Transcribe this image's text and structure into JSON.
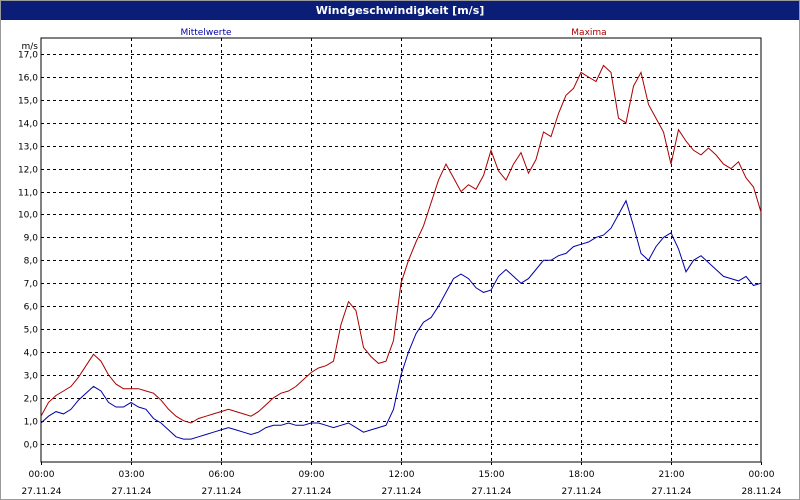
{
  "window": {
    "title": "Windgeschwindigkeit [m/s]"
  },
  "chart_data": {
    "type": "line",
    "title": "Windgeschwindigkeit [m/s]",
    "ylabel": "m/s",
    "xlabel": "",
    "ylim": [
      -0.8,
      17.7
    ],
    "xlim": [
      0,
      24
    ],
    "grid": true,
    "y_ticks": [
      0,
      1,
      2,
      3,
      4,
      5,
      6,
      7,
      8,
      9,
      10,
      11,
      12,
      13,
      14,
      15,
      16,
      17
    ],
    "y_tick_labels": [
      "0,0",
      "1,0",
      "2,0",
      "3,0",
      "4,0",
      "5,0",
      "6,0",
      "7,0",
      "8,0",
      "9,0",
      "10,0",
      "11,0",
      "12,0",
      "13,0",
      "14,0",
      "15,0",
      "16,0",
      "17,0"
    ],
    "x_ticks": [
      {
        "time": "00:00",
        "date": "27.11.24"
      },
      {
        "time": "03:00",
        "date": "27.11.24"
      },
      {
        "time": "06:00",
        "date": "27.11.24"
      },
      {
        "time": "09:00",
        "date": "27.11.24"
      },
      {
        "time": "12:00",
        "date": "27.11.24"
      },
      {
        "time": "15:00",
        "date": "27.11.24"
      },
      {
        "time": "18:00",
        "date": "27.11.24"
      },
      {
        "time": "21:00",
        "date": "27.11.24"
      },
      {
        "time": "00:00",
        "date": "28.11.24"
      }
    ],
    "series": [
      {
        "name": "Mittelwerte",
        "color": "#0000aa",
        "x": [
          0,
          0.25,
          0.5,
          0.75,
          1.0,
          1.25,
          1.5,
          1.75,
          2.0,
          2.25,
          2.5,
          2.75,
          3.0,
          3.25,
          3.5,
          3.75,
          4.0,
          4.25,
          4.5,
          4.75,
          5.0,
          5.25,
          5.5,
          5.75,
          6.0,
          6.25,
          6.5,
          6.75,
          7.0,
          7.25,
          7.5,
          7.75,
          8.0,
          8.25,
          8.5,
          8.75,
          9.0,
          9.25,
          9.5,
          9.75,
          10.0,
          10.25,
          10.5,
          10.75,
          11.0,
          11.25,
          11.5,
          11.75,
          12.0,
          12.25,
          12.5,
          12.75,
          13.0,
          13.25,
          13.5,
          13.75,
          14.0,
          14.25,
          14.5,
          14.75,
          15.0,
          15.25,
          15.5,
          15.75,
          16.0,
          16.25,
          16.5,
          16.75,
          17.0,
          17.25,
          17.5,
          17.75,
          18.0,
          18.25,
          18.5,
          18.75,
          19.0,
          19.25,
          19.5,
          19.75,
          20.0,
          20.25,
          20.5,
          20.75,
          21.0,
          21.25,
          21.5,
          21.75,
          22.0,
          22.25,
          22.5,
          22.75,
          23.0,
          23.25,
          23.5,
          23.75,
          24.0
        ],
        "values": [
          0.9,
          1.2,
          1.4,
          1.3,
          1.5,
          1.9,
          2.2,
          2.5,
          2.3,
          1.8,
          1.6,
          1.6,
          1.8,
          1.6,
          1.5,
          1.1,
          0.9,
          0.6,
          0.3,
          0.2,
          0.2,
          0.3,
          0.4,
          0.5,
          0.6,
          0.7,
          0.6,
          0.5,
          0.4,
          0.5,
          0.7,
          0.8,
          0.8,
          0.9,
          0.8,
          0.8,
          0.9,
          0.9,
          0.8,
          0.7,
          0.8,
          0.9,
          0.7,
          0.5,
          0.6,
          0.7,
          0.8,
          1.5,
          3.0,
          4.0,
          4.8,
          5.3,
          5.5,
          6.0,
          6.6,
          7.2,
          7.4,
          7.2,
          6.8,
          6.6,
          6.7,
          7.3,
          7.6,
          7.3,
          7.0,
          7.2,
          7.6,
          8.0,
          8.0,
          8.2,
          8.3,
          8.6,
          8.7,
          8.8,
          9.0,
          9.1,
          9.4,
          10.0,
          10.6,
          9.5,
          8.3,
          8.0,
          8.6,
          9.0,
          9.2,
          8.5,
          7.5,
          8.0,
          8.2,
          7.9,
          7.6,
          7.3,
          7.2,
          7.1,
          7.3,
          6.9,
          7.0
        ],
        "line_width": 1
      },
      {
        "name": "Maxima",
        "color": "#aa0000",
        "x": [
          0,
          0.25,
          0.5,
          0.75,
          1.0,
          1.25,
          1.5,
          1.75,
          2.0,
          2.25,
          2.5,
          2.75,
          3.0,
          3.25,
          3.5,
          3.75,
          4.0,
          4.25,
          4.5,
          4.75,
          5.0,
          5.25,
          5.5,
          5.75,
          6.0,
          6.25,
          6.5,
          6.75,
          7.0,
          7.25,
          7.5,
          7.75,
          8.0,
          8.25,
          8.5,
          8.75,
          9.0,
          9.25,
          9.5,
          9.75,
          10.0,
          10.25,
          10.5,
          10.75,
          11.0,
          11.25,
          11.5,
          11.75,
          12.0,
          12.25,
          12.5,
          12.75,
          13.0,
          13.25,
          13.5,
          13.75,
          14.0,
          14.25,
          14.5,
          14.75,
          15.0,
          15.25,
          15.5,
          15.75,
          16.0,
          16.25,
          16.5,
          16.75,
          17.0,
          17.25,
          17.5,
          17.75,
          18.0,
          18.25,
          18.5,
          18.75,
          19.0,
          19.25,
          19.5,
          19.75,
          20.0,
          20.25,
          20.5,
          20.75,
          21.0,
          21.25,
          21.5,
          21.75,
          22.0,
          22.25,
          22.5,
          22.75,
          23.0,
          23.25,
          23.5,
          23.75,
          24.0
        ],
        "values": [
          1.2,
          1.8,
          2.1,
          2.3,
          2.5,
          2.9,
          3.4,
          3.9,
          3.6,
          3.0,
          2.6,
          2.4,
          2.4,
          2.4,
          2.3,
          2.2,
          1.9,
          1.5,
          1.2,
          1.0,
          0.9,
          1.1,
          1.2,
          1.3,
          1.4,
          1.5,
          1.4,
          1.3,
          1.2,
          1.4,
          1.7,
          2.0,
          2.2,
          2.3,
          2.5,
          2.8,
          3.1,
          3.3,
          3.4,
          3.6,
          5.2,
          6.2,
          5.8,
          4.2,
          3.8,
          3.5,
          3.6,
          4.5,
          7.0,
          8.0,
          8.8,
          9.5,
          10.5,
          11.5,
          12.2,
          11.6,
          11.0,
          11.3,
          11.1,
          11.7,
          12.8,
          11.9,
          11.5,
          12.2,
          12.7,
          11.8,
          12.4,
          13.6,
          13.4,
          14.4,
          15.2,
          15.5,
          16.2,
          16.0,
          15.8,
          16.5,
          16.2,
          14.2,
          14.0,
          15.6,
          16.2,
          14.8,
          14.2,
          13.6,
          12.2,
          13.7,
          13.2,
          12.8,
          12.6,
          12.9,
          12.6,
          12.2,
          12.0,
          12.3,
          11.6,
          11.2,
          10.1
        ],
        "line_width": 1
      }
    ],
    "legend": [
      {
        "label": "Mittelwerte",
        "color": "#0000aa",
        "position": "top-left"
      },
      {
        "label": "Maxima",
        "color": "#aa0000",
        "position": "top-right"
      }
    ]
  }
}
